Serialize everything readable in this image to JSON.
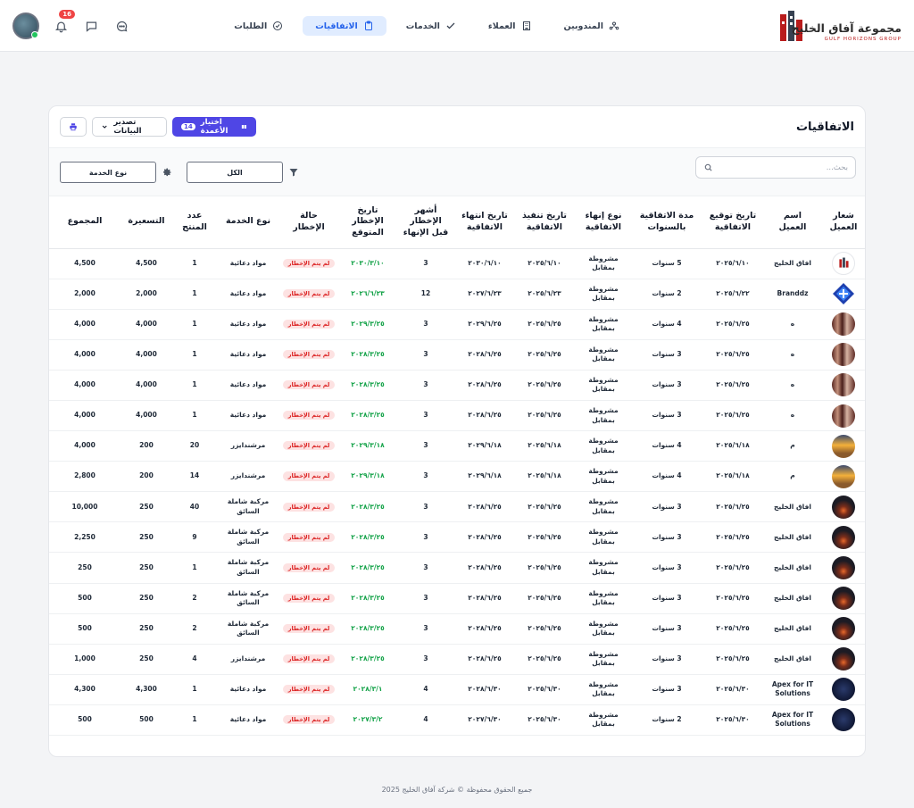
{
  "brand": {
    "name_ar": "مجموعة آفاق الخليج",
    "name_en": "GULF HORIZONS GROUP"
  },
  "nav": [
    {
      "label": "المندوبين",
      "icon": "users-icon"
    },
    {
      "label": "العملاء",
      "icon": "building-icon"
    },
    {
      "label": "الخدمات",
      "icon": "check-icon"
    },
    {
      "label": "الاتفاقيات",
      "icon": "clipboard-icon",
      "active": true
    },
    {
      "label": "الطلبات",
      "icon": "check-circle-icon"
    }
  ],
  "header": {
    "notifications_count": "16"
  },
  "page": {
    "title": "الاتفاقيات",
    "columns_button": "اختيار الأعمدة",
    "columns_count": "14",
    "export_button": "تصدير البيانات",
    "search_placeholder": "بحث...",
    "filter_value": "الكل",
    "service_filter": "نوع الخدمة"
  },
  "table": {
    "headers": [
      "شعار العميل",
      "اسم العميل",
      "تاريخ توقيع الاتفاقية",
      "مدة الاتفاقية بالسنوات",
      "نوع إنهاء الاتفاقية",
      "تاريخ تنفيذ الاتفاقية",
      "تاريخ انتهاء الاتفاقية",
      "أشهر الإخطار قبل الإنهاء",
      "تاريخ الإخطار المتوقع",
      "حالة الإخطار",
      "نوع الخدمة",
      "عدد المنتج",
      "التسعيرة",
      "المجموع"
    ],
    "rows": [
      {
        "logo": "gulf",
        "client": "افاق الخليج",
        "sign": "٢٠٢٥/٦/١٠",
        "duration": "5 سنوات",
        "end_type": "مشروطة بمقابل",
        "exec": "٢٠٢٥/٦/١٠",
        "expiry": "٢٠٣٠/٦/١٠",
        "months": "3",
        "notice": "٢٠٣٠/٣/١٠",
        "status": "لم يتم الإخطار",
        "service": "مواد دعائية",
        "qty": "1",
        "price": "4,500",
        "total": "4,500"
      },
      {
        "logo": "brand",
        "client": "Branddz",
        "sign": "٢٠٢٥/٦/٢٢",
        "duration": "2 سنوات",
        "end_type": "مشروطة بمقابل",
        "exec": "٢٠٢٥/٦/٢٣",
        "expiry": "٢٠٢٧/٦/٢٣",
        "months": "12",
        "notice": "٢٠٢٦/٦/٢٣",
        "status": "لم يتم الإخطار",
        "service": "مواد دعائية",
        "qty": "1",
        "price": "2,000",
        "total": "2,000"
      },
      {
        "logo": "photo",
        "client": "ه",
        "sign": "٢٠٢٥/٦/٢٥",
        "duration": "4 سنوات",
        "end_type": "مشروطة بمقابل",
        "exec": "٢٠٢٥/٦/٢٥",
        "expiry": "٢٠٢٩/٦/٢٥",
        "months": "3",
        "notice": "٢٠٢٩/٣/٢٥",
        "status": "لم يتم الإخطار",
        "service": "مواد دعائية",
        "qty": "1",
        "price": "4,000",
        "total": "4,000"
      },
      {
        "logo": "photo",
        "client": "ه",
        "sign": "٢٠٢٥/٦/٢٥",
        "duration": "3 سنوات",
        "end_type": "مشروطة بمقابل",
        "exec": "٢٠٢٥/٦/٢٥",
        "expiry": "٢٠٢٨/٦/٢٥",
        "months": "3",
        "notice": "٢٠٢٨/٣/٢٥",
        "status": "لم يتم الإخطار",
        "service": "مواد دعائية",
        "qty": "1",
        "price": "4,000",
        "total": "4,000"
      },
      {
        "logo": "photo",
        "client": "ه",
        "sign": "٢٠٢٥/٦/٢٥",
        "duration": "3 سنوات",
        "end_type": "مشروطة بمقابل",
        "exec": "٢٠٢٥/٦/٢٥",
        "expiry": "٢٠٢٨/٦/٢٥",
        "months": "3",
        "notice": "٢٠٢٨/٣/٢٥",
        "status": "لم يتم الإخطار",
        "service": "مواد دعائية",
        "qty": "1",
        "price": "4,000",
        "total": "4,000"
      },
      {
        "logo": "photo",
        "client": "ه",
        "sign": "٢٠٢٥/٦/٢٥",
        "duration": "3 سنوات",
        "end_type": "مشروطة بمقابل",
        "exec": "٢٠٢٥/٦/٢٥",
        "expiry": "٢٠٢٨/٦/٢٥",
        "months": "3",
        "notice": "٢٠٢٨/٣/٢٥",
        "status": "لم يتم الإخطار",
        "service": "مواد دعائية",
        "qty": "1",
        "price": "4,000",
        "total": "4,000"
      },
      {
        "logo": "crowd",
        "client": "م",
        "sign": "٢٠٢٥/٦/١٨",
        "duration": "4 سنوات",
        "end_type": "مشروطة بمقابل",
        "exec": "٢٠٢٥/٦/١٨",
        "expiry": "٢٠٢٩/٦/١٨",
        "months": "3",
        "notice": "٢٠٢٩/٣/١٨",
        "status": "لم يتم الإخطار",
        "service": "مرشندايزر",
        "qty": "20",
        "price": "200",
        "total": "4,000"
      },
      {
        "logo": "crowd",
        "client": "م",
        "sign": "٢٠٢٥/٦/١٨",
        "duration": "4 سنوات",
        "end_type": "مشروطة بمقابل",
        "exec": "٢٠٢٥/٦/١٨",
        "expiry": "٢٠٢٩/٦/١٨",
        "months": "3",
        "notice": "٢٠٢٩/٣/١٨",
        "status": "لم يتم الإخطار",
        "service": "مرشندايزر",
        "qty": "14",
        "price": "200",
        "total": "2,800"
      },
      {
        "logo": "dark",
        "client": "افاق الخليج",
        "sign": "٢٠٢٥/٦/٢٥",
        "duration": "3 سنوات",
        "end_type": "مشروطة بمقابل",
        "exec": "٢٠٢٥/٦/٢٥",
        "expiry": "٢٠٢٨/٦/٢٥",
        "months": "3",
        "notice": "٢٠٢٨/٣/٢٥",
        "status": "لم يتم الإخطار",
        "service": "مركبة شاملة السائق",
        "qty": "40",
        "price": "250",
        "total": "10,000"
      },
      {
        "logo": "dark",
        "client": "افاق الخليج",
        "sign": "٢٠٢٥/٦/٢٥",
        "duration": "3 سنوات",
        "end_type": "مشروطة بمقابل",
        "exec": "٢٠٢٥/٦/٢٥",
        "expiry": "٢٠٢٨/٦/٢٥",
        "months": "3",
        "notice": "٢٠٢٨/٣/٢٥",
        "status": "لم يتم الإخطار",
        "service": "مركبة شاملة السائق",
        "qty": "9",
        "price": "250",
        "total": "2,250"
      },
      {
        "logo": "dark",
        "client": "افاق الخليج",
        "sign": "٢٠٢٥/٦/٢٥",
        "duration": "3 سنوات",
        "end_type": "مشروطة بمقابل",
        "exec": "٢٠٢٥/٦/٢٥",
        "expiry": "٢٠٢٨/٦/٢٥",
        "months": "3",
        "notice": "٢٠٢٨/٣/٢٥",
        "status": "لم يتم الإخطار",
        "service": "مركبة شاملة السائق",
        "qty": "1",
        "price": "250",
        "total": "250"
      },
      {
        "logo": "dark",
        "client": "افاق الخليج",
        "sign": "٢٠٢٥/٦/٢٥",
        "duration": "3 سنوات",
        "end_type": "مشروطة بمقابل",
        "exec": "٢٠٢٥/٦/٢٥",
        "expiry": "٢٠٢٨/٦/٢٥",
        "months": "3",
        "notice": "٢٠٢٨/٣/٢٥",
        "status": "لم يتم الإخطار",
        "service": "مركبة شاملة السائق",
        "qty": "2",
        "price": "250",
        "total": "500"
      },
      {
        "logo": "dark",
        "client": "افاق الخليج",
        "sign": "٢٠٢٥/٦/٢٥",
        "duration": "3 سنوات",
        "end_type": "مشروطة بمقابل",
        "exec": "٢٠٢٥/٦/٢٥",
        "expiry": "٢٠٢٨/٦/٢٥",
        "months": "3",
        "notice": "٢٠٢٨/٣/٢٥",
        "status": "لم يتم الإخطار",
        "service": "مركبة شاملة السائق",
        "qty": "2",
        "price": "250",
        "total": "500"
      },
      {
        "logo": "dark",
        "client": "افاق الخليج",
        "sign": "٢٠٢٥/٦/٢٥",
        "duration": "3 سنوات",
        "end_type": "مشروطة بمقابل",
        "exec": "٢٠٢٥/٦/٢٥",
        "expiry": "٢٠٢٨/٦/٢٥",
        "months": "3",
        "notice": "٢٠٢٨/٣/٢٥",
        "status": "لم يتم الإخطار",
        "service": "مرشندايزر",
        "qty": "4",
        "price": "250",
        "total": "1,000"
      },
      {
        "logo": "navy",
        "client": "Apex for IT Solutions",
        "sign": "٢٠٢٥/٦/٣٠",
        "duration": "3 سنوات",
        "end_type": "مشروطة بمقابل",
        "exec": "٢٠٢٥/٦/٣٠",
        "expiry": "٢٠٢٨/٦/٣٠",
        "months": "4",
        "notice": "٢٠٢٨/٣/١",
        "status": "لم يتم الإخطار",
        "service": "مواد دعائية",
        "qty": "1",
        "price": "4,300",
        "total": "4,300"
      },
      {
        "logo": "navy",
        "client": "Apex for IT Solutions",
        "sign": "٢٠٢٥/٦/٣٠",
        "duration": "2 سنوات",
        "end_type": "مشروطة بمقابل",
        "exec": "٢٠٢٥/٦/٣٠",
        "expiry": "٢٠٢٧/٦/٣٠",
        "months": "4",
        "notice": "٢٠٢٧/٣/٢",
        "status": "لم يتم الإخطار",
        "service": "مواد دعائية",
        "qty": "1",
        "price": "500",
        "total": "500"
      }
    ]
  },
  "footer": "جميع الحقوق محفوظة © شركة آفاق الخليج 2025"
}
